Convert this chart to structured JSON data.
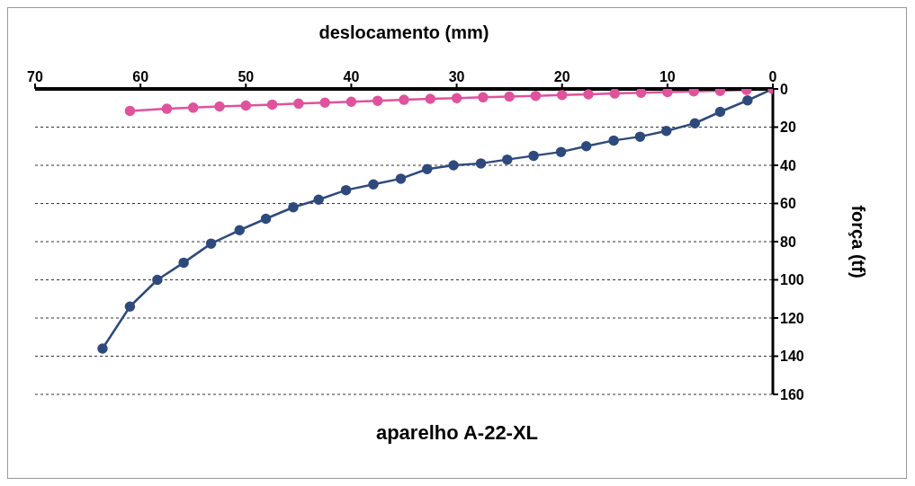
{
  "chart_data": {
    "type": "line",
    "title": "aparelho A-22-XL",
    "xlabel": "deslocamento (mm)",
    "ylabel": "força (tf)",
    "xlim": [
      70,
      0
    ],
    "xticks": [
      0,
      10,
      20,
      30,
      40,
      50,
      60,
      70
    ],
    "ylim": [
      160,
      0
    ],
    "yticks": [
      0,
      20,
      40,
      60,
      80,
      100,
      120,
      140,
      160
    ],
    "grid": "y",
    "marker": "circle",
    "line_style": "solid",
    "series": [
      {
        "color": "#2e4a7d",
        "x": [
          0,
          2.4,
          5.0,
          7.4,
          10.1,
          12.6,
          15.1,
          17.7,
          20.1,
          22.7,
          25.2,
          27.7,
          30.3,
          32.8,
          35.3,
          37.9,
          40.5,
          43.1,
          45.5,
          48.1,
          50.6,
          53.3,
          55.9,
          58.4,
          61,
          63.6
        ],
        "values": [
          0,
          6,
          12,
          18,
          22,
          25,
          27,
          30,
          33,
          35,
          37,
          39,
          40,
          42,
          47,
          50,
          53,
          58,
          62,
          68,
          74,
          81,
          91,
          100,
          114,
          136
        ]
      },
      {
        "color": "#e0529c",
        "x": [
          0,
          2.5,
          5,
          7.5,
          10,
          12.5,
          15,
          17.5,
          20,
          22.5,
          25,
          27.5,
          30,
          32.5,
          35,
          37.5,
          40,
          42.5,
          45,
          47.5,
          50,
          52.5,
          55,
          57.5,
          61
        ],
        "values": [
          0,
          0.5,
          1,
          1.3,
          1.6,
          2,
          2.4,
          2.8,
          3.2,
          3.6,
          4,
          4.4,
          4.8,
          5.2,
          5.7,
          6.2,
          6.7,
          7.2,
          7.7,
          8.2,
          8.7,
          9.2,
          9.8,
          10.4,
          11.5
        ]
      }
    ]
  }
}
